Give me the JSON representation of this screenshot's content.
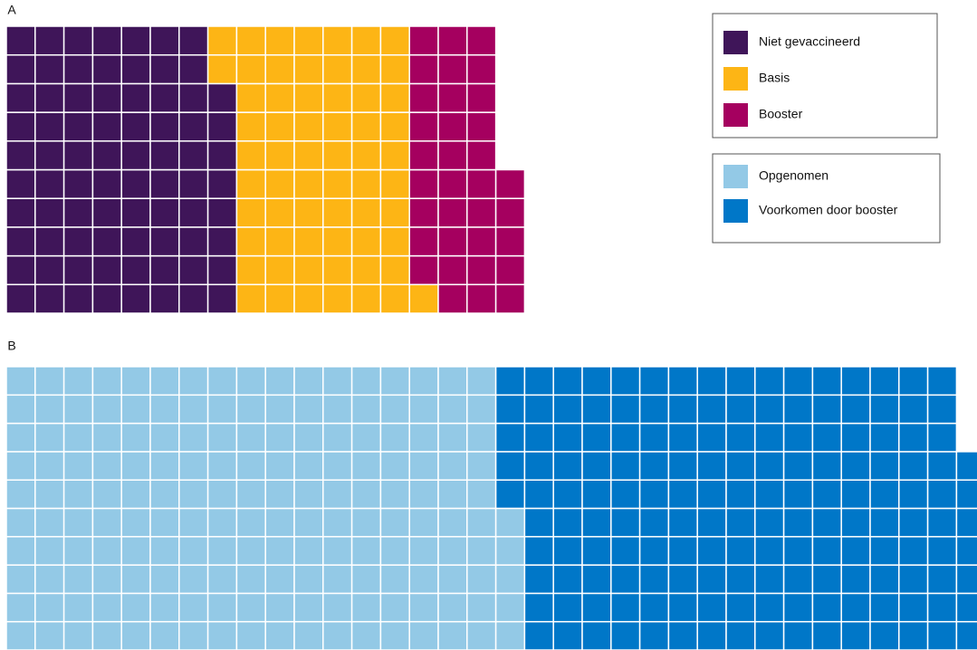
{
  "chart_data": [
    {
      "type": "waffle",
      "title": "A",
      "series": [
        {
          "name": "Niet gevaccineerd",
          "color": "#3f1559",
          "value": 78
        },
        {
          "name": "Basis",
          "color": "#fdb515",
          "value": 63
        },
        {
          "name": "Booster",
          "color": "#a5005f",
          "value": 34
        }
      ]
    },
    {
      "type": "waffle",
      "title": "B",
      "series": [
        {
          "name": "Opgenomen",
          "color": "#93c9e6",
          "value": 175
        },
        {
          "name": "Voorkomen door booster",
          "color": "#0077c8",
          "value": 162
        }
      ]
    }
  ]
}
